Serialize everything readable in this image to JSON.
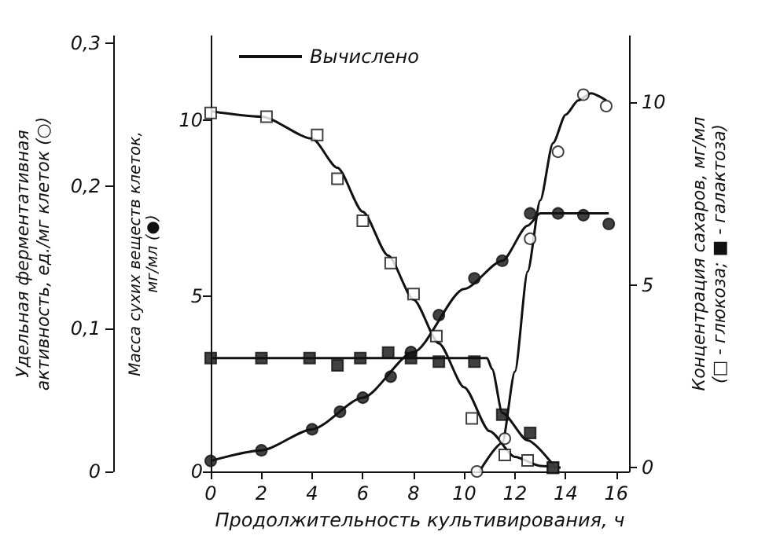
{
  "chart_data": {
    "type": "scatter",
    "xlabel": "Продолжительность культивирования, ч",
    "ylabel": "Масса сухих веществ клеток,\nмг/мл (●)",
    "y2label": "Концентрация сахаров, мг/мл\n(□ - глюкоза; ■ - галактоза)",
    "y3label": "Удельная ферментативная\nактивность, ед./мг клеток (○)",
    "xlim": [
      0,
      16.5
    ],
    "xticks": [
      0,
      2,
      4,
      6,
      8,
      10,
      12,
      14,
      16
    ],
    "ylim": [
      0,
      12.4
    ],
    "yticks": [
      0,
      5,
      10
    ],
    "y2lim": [
      -0.1,
      11.8
    ],
    "y2ticks": [
      0,
      5,
      10
    ],
    "y3lim": [
      0,
      0.305
    ],
    "y3ticks": [
      {
        "value": 0,
        "label": "0"
      },
      {
        "value": 0.1,
        "label": "0,1"
      },
      {
        "value": 0.2,
        "label": "0,2"
      },
      {
        "value": 0.3,
        "label": "0,3"
      }
    ],
    "legend": "top left",
    "grid": false,
    "series": [
      {
        "type": "line",
        "name": "Вычислено",
        "color": "#111111",
        "axis": "y2",
        "marker": "none",
        "x": [
          0,
          2,
          4,
          5,
          6,
          7,
          8,
          9,
          10,
          11,
          12,
          13,
          13.8
        ],
        "values": [
          9.75,
          9.6,
          9.0,
          8.2,
          7.0,
          5.8,
          4.6,
          3.4,
          2.2,
          1.0,
          0.3,
          0.05,
          0
        ]
      },
      {
        "type": "line",
        "color": "#111111",
        "axis": "y2",
        "marker": "none",
        "x": [
          0,
          5,
          10.9,
          11.1,
          11.5,
          12.5,
          13.6
        ],
        "values": [
          3.0,
          3.0,
          3.0,
          2.7,
          1.5,
          0.75,
          0
        ]
      },
      {
        "type": "line",
        "color": "#111111",
        "axis": "y",
        "marker": "none",
        "x": [
          0,
          2,
          4,
          6,
          8,
          10,
          11.5,
          12.5,
          13,
          14,
          15.7
        ],
        "values": [
          0.3,
          0.6,
          1.2,
          2.1,
          3.4,
          5.2,
          6.0,
          7.0,
          7.35,
          7.35,
          7.35
        ]
      },
      {
        "type": "line",
        "color": "#111111",
        "axis": "y3",
        "marker": "none",
        "x": [
          10.6,
          11.5,
          12,
          12.5,
          13,
          13.5,
          14,
          14.5,
          15,
          15.6
        ],
        "values": [
          0,
          0.02,
          0.07,
          0.14,
          0.19,
          0.23,
          0.25,
          0.26,
          0.265,
          0.26
        ]
      },
      {
        "color": "#ffffff",
        "axis": "y2",
        "marker": "square",
        "x": [
          0,
          2.2,
          4.2,
          5,
          6,
          7.1,
          8,
          8.9,
          10.3,
          11.6,
          12.5,
          13.5
        ],
        "values": [
          9.7,
          9.6,
          9.1,
          7.9,
          6.75,
          5.6,
          4.75,
          3.6,
          1.35,
          0.35,
          0.2,
          0
        ]
      },
      {
        "color": "#111111",
        "axis": "y2",
        "marker": "square",
        "x": [
          0,
          2,
          3.9,
          5,
          5.9,
          7,
          7.9,
          9,
          10.4,
          11.5,
          12.6,
          13.5
        ],
        "values": [
          3.0,
          3.0,
          3.0,
          2.8,
          3.0,
          3.15,
          3.0,
          2.9,
          2.9,
          1.45,
          0.95,
          0
        ]
      },
      {
        "color": "#111111",
        "axis": "y",
        "marker": "circle",
        "x": [
          0,
          2,
          4,
          5.1,
          6,
          7.1,
          7.9,
          9,
          10.4,
          11.5,
          12.6,
          13.7,
          14.7,
          15.7
        ],
        "values": [
          0.3,
          0.6,
          1.2,
          1.7,
          2.1,
          2.7,
          3.4,
          4.45,
          5.5,
          6.0,
          7.35,
          7.35,
          7.3,
          7.05
        ]
      },
      {
        "color": "#ffffff",
        "axis": "y3",
        "marker": "circle",
        "x": [
          10.5,
          11.6,
          12.6,
          13.7,
          14.7,
          15.6
        ],
        "values": [
          0,
          0.023,
          0.163,
          0.224,
          0.264,
          0.256
        ]
      }
    ]
  }
}
